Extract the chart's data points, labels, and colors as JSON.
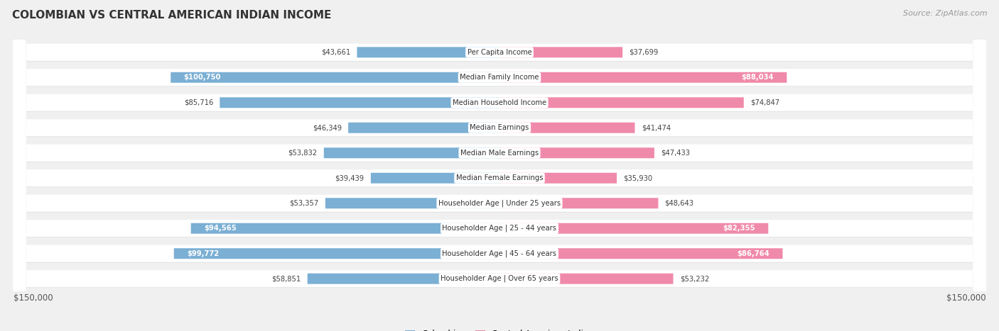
{
  "title": "COLOMBIAN VS CENTRAL AMERICAN INDIAN INCOME",
  "source": "Source: ZipAtlas.com",
  "categories": [
    "Per Capita Income",
    "Median Family Income",
    "Median Household Income",
    "Median Earnings",
    "Median Male Earnings",
    "Median Female Earnings",
    "Householder Age | Under 25 years",
    "Householder Age | 25 - 44 years",
    "Householder Age | 45 - 64 years",
    "Householder Age | Over 65 years"
  ],
  "colombian_values": [
    43661,
    100750,
    85716,
    46349,
    53832,
    39439,
    53357,
    94565,
    99772,
    58851
  ],
  "central_american_values": [
    37699,
    88034,
    74847,
    41474,
    47433,
    35930,
    48643,
    82355,
    86764,
    53232
  ],
  "colombian_labels": [
    "$43,661",
    "$100,750",
    "$85,716",
    "$46,349",
    "$53,832",
    "$39,439",
    "$53,357",
    "$94,565",
    "$99,772",
    "$58,851"
  ],
  "central_american_labels": [
    "$37,699",
    "$88,034",
    "$74,847",
    "$41,474",
    "$47,433",
    "$35,930",
    "$48,643",
    "$82,355",
    "$86,764",
    "$53,232"
  ],
  "colombian_color": "#7bafd4",
  "central_american_color": "#f08aaa",
  "colombian_label_inside_rows": [
    1,
    7,
    8
  ],
  "central_american_label_inside_rows": [
    1,
    7,
    8
  ],
  "max_value": 150000,
  "bg_color": "#f0f0f0",
  "row_bg_color": "#ffffff",
  "legend_colombian": "Colombian",
  "legend_central": "Central American Indian",
  "axis_label_left": "$150,000",
  "axis_label_right": "$150,000"
}
